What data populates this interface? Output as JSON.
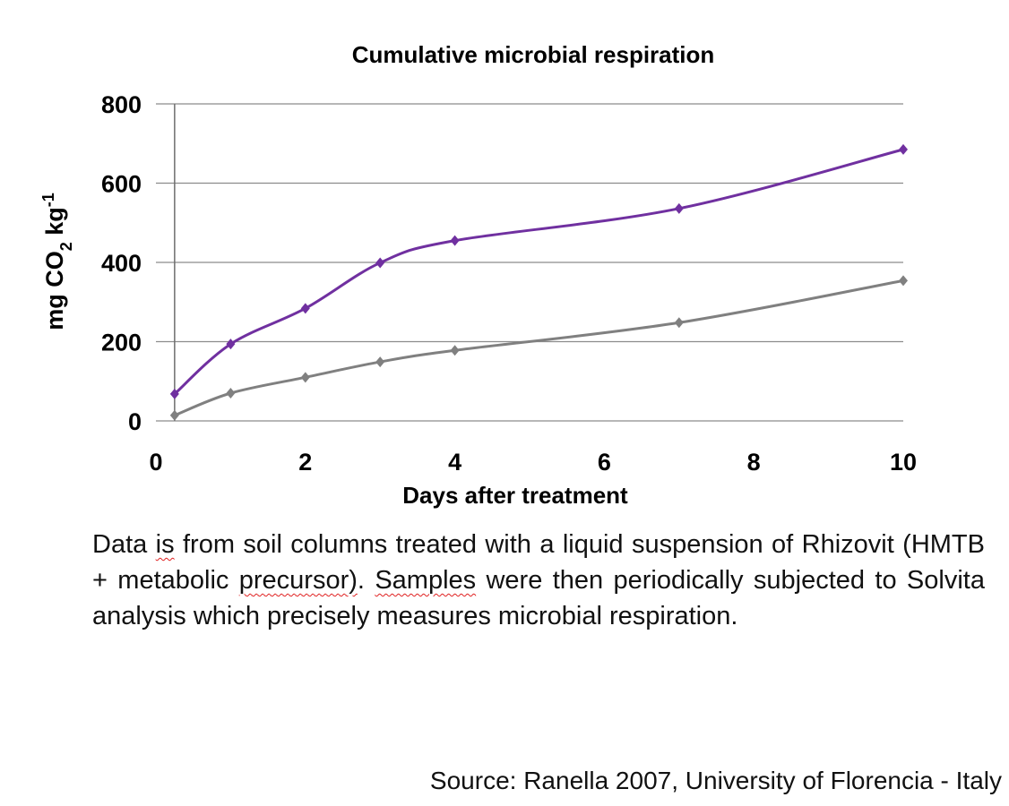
{
  "chart_data": {
    "type": "line",
    "title": "Cumulative microbial respiration",
    "xlabel": "Days after treatment",
    "ylabel": "mg CO2 kg-1",
    "xlim": [
      0,
      10
    ],
    "ylim": [
      0,
      800
    ],
    "xticks": [
      0,
      2,
      4,
      6,
      8,
      10
    ],
    "yticks": [
      0,
      200,
      400,
      600,
      800
    ],
    "grid": "horizontal",
    "legend": "none",
    "smooth": true,
    "marker": "diamond",
    "series": [
      {
        "color": "#7030a0",
        "x": [
          0.25,
          1,
          2,
          3,
          4,
          7,
          10
        ],
        "y": [
          68,
          194,
          284,
          399,
          455,
          536,
          685
        ]
      },
      {
        "color": "#808080",
        "x": [
          0.25,
          1,
          2,
          3,
          4,
          7,
          10
        ],
        "y": [
          14,
          70,
          110,
          149,
          178,
          248,
          354
        ]
      }
    ]
  },
  "caption": {
    "parts": [
      {
        "text": "Data ",
        "flag": false
      },
      {
        "text": "is",
        "flag": true
      },
      {
        "text": " from soil columns treated with a liquid suspension of Rhizovit (HMTB + metabolic ",
        "flag": false
      },
      {
        "text": "precursor)",
        "flag": true
      },
      {
        "text": ". ",
        "flag": false
      },
      {
        "text": "Samples",
        "flag": true
      },
      {
        "text": " were then periodically subjected to Solvita analysis which precisely measures microbial respiration.",
        "flag": false
      }
    ]
  },
  "source": "Source: Ranella 2007, University of Florencia - Italy"
}
